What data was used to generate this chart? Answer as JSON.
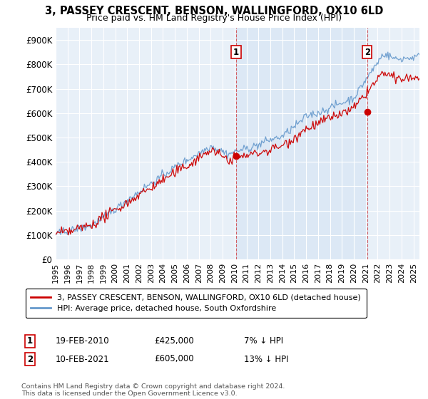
{
  "title": "3, PASSEY CRESCENT, BENSON, WALLINGFORD, OX10 6LD",
  "subtitle": "Price paid vs. HM Land Registry's House Price Index (HPI)",
  "yticks": [
    0,
    100000,
    200000,
    300000,
    400000,
    500000,
    600000,
    700000,
    800000,
    900000
  ],
  "ytick_labels": [
    "£0",
    "£100K",
    "£200K",
    "£300K",
    "£400K",
    "£500K",
    "£600K",
    "£700K",
    "£800K",
    "£900K"
  ],
  "ylim": [
    0,
    950000
  ],
  "xlim_start": 1995.0,
  "xlim_end": 2025.5,
  "sale1_x": 2010.13,
  "sale1_y": 425000,
  "sale2_x": 2021.12,
  "sale2_y": 605000,
  "legend_line1": "3, PASSEY CRESCENT, BENSON, WALLINGFORD, OX10 6LD (detached house)",
  "legend_line2": "HPI: Average price, detached house, South Oxfordshire",
  "ann1_label": "1",
  "ann1_date": "19-FEB-2010",
  "ann1_price": "£425,000",
  "ann1_hpi": "7% ↓ HPI",
  "ann2_label": "2",
  "ann2_date": "10-FEB-2021",
  "ann2_price": "£605,000",
  "ann2_hpi": "13% ↓ HPI",
  "footer": "Contains HM Land Registry data © Crown copyright and database right 2024.\nThis data is licensed under the Open Government Licence v3.0.",
  "line_color_red": "#cc0000",
  "line_color_blue": "#6699cc",
  "shade_color": "#dce8f5",
  "bg_color": "#e8f0f8",
  "title_fontsize": 10.5,
  "subtitle_fontsize": 9,
  "xtick_years": [
    1995,
    1996,
    1997,
    1998,
    1999,
    2000,
    2001,
    2002,
    2003,
    2004,
    2005,
    2006,
    2007,
    2008,
    2009,
    2010,
    2011,
    2012,
    2013,
    2014,
    2015,
    2016,
    2017,
    2018,
    2019,
    2020,
    2021,
    2022,
    2023,
    2024,
    2025
  ]
}
